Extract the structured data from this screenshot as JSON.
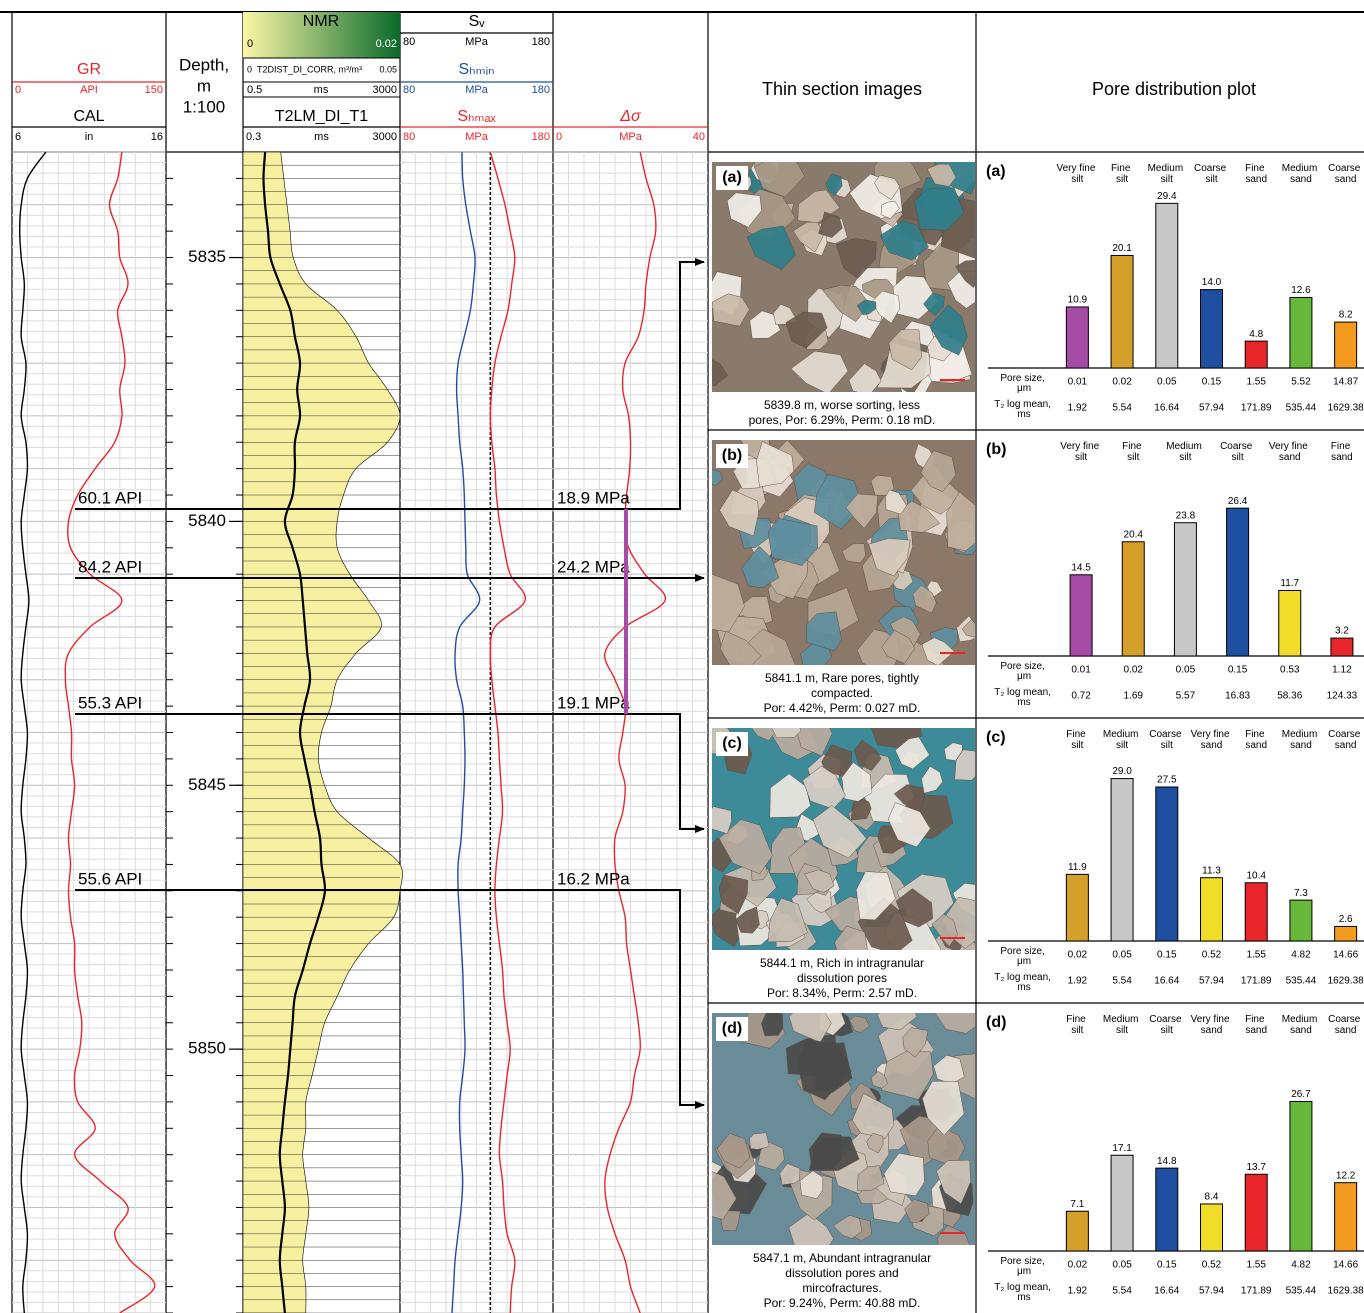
{
  "chart_data": [
    {
      "type": "log",
      "depth_axis": {
        "title": "Depth,",
        "unit": "m",
        "scale": "1:100",
        "lim": [
          5833,
          5855
        ],
        "ticks": [
          5835,
          5840,
          5845,
          5850
        ]
      },
      "depth": [
        5833,
        5833.5,
        5834,
        5834.5,
        5835,
        5835.5,
        5836,
        5836.5,
        5837,
        5837.5,
        5838,
        5838.5,
        5839,
        5839.5,
        5840,
        5840.5,
        5841,
        5841.5,
        5842,
        5842.5,
        5843,
        5843.5,
        5844,
        5844.5,
        5845,
        5845.5,
        5846,
        5846.5,
        5847,
        5847.5,
        5848,
        5848.5,
        5849,
        5849.5,
        5850,
        5850.5,
        5851,
        5851.5,
        5852,
        5852.5,
        5853,
        5853.5,
        5854,
        5854.5,
        5855
      ],
      "tracks": [
        {
          "curves": [
            {
              "name": "GR",
              "unit": "API",
              "lim": [
                0,
                150
              ],
              "color": "#e8262a",
              "values": [
                107,
                103,
                95,
                103,
                105,
                113,
                103,
                107,
                110,
                105,
                107,
                100,
                81,
                64,
                55,
                57,
                76,
                107,
                76,
                55,
                52,
                55,
                58,
                58,
                61,
                58,
                55,
                57,
                55,
                57,
                61,
                61,
                64,
                68,
                66,
                61,
                64,
                81,
                61,
                86,
                113,
                100,
                115,
                139,
                105
              ]
            },
            {
              "name": "CAL",
              "unit": "in",
              "lim": [
                6,
                16
              ],
              "color": "#000000",
              "values": [
                8.2,
                7.0,
                6.6,
                6.5,
                6.6,
                6.8,
                6.7,
                6.6,
                6.9,
                6.8,
                6.6,
                6.9,
                7.0,
                6.8,
                6.6,
                6.7,
                6.9,
                7.1,
                6.9,
                6.7,
                6.6,
                6.8,
                7.0,
                6.9,
                6.7,
                6.6,
                6.8,
                6.9,
                6.7,
                6.6,
                6.8,
                7.0,
                6.9,
                6.7,
                6.6,
                6.8,
                7.0,
                6.9,
                6.7,
                6.6,
                6.8,
                7.0,
                6.9,
                6.7,
                6.8
              ]
            }
          ]
        },
        {
          "title": "NMR",
          "colorbar_lim": [
            0,
            0.02
          ],
          "colorbar_colors": [
            "#fbf7a6",
            "#0a6a2b"
          ],
          "dist_label": "T2DIST_DI_CORR, m³/m³",
          "dist_lim": [
            0,
            0.05
          ],
          "dist_color": "#f7f0a0",
          "dist_values": [
            0.012,
            0.013,
            0.014,
            0.015,
            0.016,
            0.02,
            0.03,
            0.036,
            0.04,
            0.046,
            0.05,
            0.046,
            0.036,
            0.032,
            0.03,
            0.03,
            0.034,
            0.04,
            0.044,
            0.036,
            0.03,
            0.028,
            0.025,
            0.024,
            0.026,
            0.03,
            0.04,
            0.05,
            0.05,
            0.048,
            0.04,
            0.034,
            0.03,
            0.026,
            0.024,
            0.022,
            0.02,
            0.02,
            0.019,
            0.02,
            0.021,
            0.02,
            0.019,
            0.02,
            0.02
          ],
          "t2_unit": "ms",
          "t2_lim": [
            0.5,
            3000
          ],
          "curves": [
            {
              "name": "T2LM_DI_T1",
              "unit": "ms",
              "lim": [
                0.3,
                3000
              ],
              "log": true,
              "color": "#000000",
              "values": [
                1.1,
                1.0,
                1.1,
                1.3,
                1.5,
                2.6,
                4.8,
                6.3,
                8.5,
                7.2,
                8.5,
                6.3,
                6.3,
                5.5,
                3.5,
                5.5,
                8.5,
                10,
                11.4,
                13,
                15.3,
                11,
                8.5,
                11,
                15.3,
                20,
                27.4,
                30,
                36.7,
                25,
                15.3,
                10,
                6.3,
                5.5,
                4.8,
                4.2,
                3.5,
                3,
                2.6,
                3,
                3.5,
                3,
                2.6,
                3,
                3.5
              ]
            }
          ]
        },
        {
          "curves": [
            {
              "name": "Sᵥ",
              "unit": "MPa",
              "lim": [
                80,
                180
              ],
              "color": "#000000",
              "dash": true,
              "values": [
                139,
                139,
                139,
                139,
                139,
                139,
                139,
                139,
                139,
                139,
                139,
                139,
                139,
                139,
                139,
                139,
                139,
                139,
                139,
                139,
                139,
                139,
                139,
                139,
                139,
                139,
                139,
                139,
                139,
                139,
                139,
                139,
                139,
                139,
                139,
                139,
                139,
                139,
                139,
                139,
                139,
                139,
                139,
                139,
                139
              ]
            },
            {
              "name": "Sₕₘᵢₙ",
              "unit": "MPa",
              "lim": [
                80,
                180
              ],
              "color": "#1f4fa0",
              "values": [
                120.5,
                121,
                123,
                126,
                129,
                128,
                126,
                122,
                118,
                117,
                118,
                119,
                121,
                122,
                122.5,
                123,
                124,
                132,
                119,
                116,
                117,
                121,
                122,
                122.5,
                122,
                121,
                120,
                118,
                118,
                119,
                120,
                121,
                121.5,
                122,
                122.5,
                121,
                119,
                119,
                120,
                121,
                120,
                118,
                116,
                115,
                114
              ]
            },
            {
              "name": "Sₕₘₐₓ",
              "unit": "MPa",
              "lim": [
                80,
                180
              ],
              "color": "#e8262a",
              "values": [
                139,
                144,
                148.6,
                152,
                155,
                153,
                150.6,
                146,
                142,
                140,
                139,
                140,
                142,
                143,
                145,
                148,
                152,
                161.7,
                142,
                139,
                140,
                142,
                144,
                145,
                146,
                147,
                145,
                143,
                142,
                143,
                145,
                147,
                148,
                150,
                152,
                150,
                148,
                146,
                145,
                147,
                148,
                150,
                155,
                153,
                152
              ]
            }
          ]
        },
        {
          "curves": [
            {
              "name": "Δσ",
              "unit": "MPa",
              "lim": [
                0,
                40
              ],
              "color": "#e8262a",
              "values": [
                22.5,
                24,
                26,
                26.5,
                25,
                24,
                23.5,
                22,
                18.6,
                18,
                19.5,
                20,
                19.8,
                19,
                18.6,
                19.5,
                23.7,
                28.9,
                18.6,
                13.4,
                16,
                18.6,
                18,
                17,
                18.6,
                18,
                16,
                16,
                17,
                18.6,
                19,
                20,
                21,
                22,
                22.5,
                21,
                20,
                17,
                14.7,
                13.4,
                14,
                16,
                18.6,
                20,
                22.5
              ]
            }
          ]
        }
      ],
      "annotations": [
        {
          "gr": "60.1 API",
          "ds": "18.9 MPa"
        },
        {
          "gr": "84.2 API",
          "ds": "24.2 MPa"
        },
        {
          "gr": "55.3 API",
          "ds": "19.1 MPa"
        },
        {
          "gr": "55.6 API",
          "ds": "16.2 MPa"
        }
      ]
    },
    {
      "type": "bar",
      "label": "(a)",
      "categories": [
        "Very fine silt",
        "Fine silt",
        "Medium silt",
        "Coarse silt",
        "Fine sand",
        "Medium sand",
        "Coarse sand"
      ],
      "values": [
        10.9,
        20.1,
        29.4,
        14.0,
        4.8,
        12.6,
        8.2
      ],
      "value_labels": [
        "10.9",
        "20.1",
        "29.4",
        "14.0",
        "4.8",
        "12.6",
        "8.2"
      ],
      "colors": [
        "#a64ca6",
        "#d4a02a",
        "#c8c8c8",
        "#1f4fa0",
        "#e8262a",
        "#66b73a",
        "#f39a1f"
      ],
      "pore_size_label": "Pore size, μm",
      "pore_sizes": [
        "0.01",
        "0.02",
        "0.05",
        "0.15",
        "1.55",
        "5.52",
        "14.87"
      ],
      "t2_label": "T₂ log mean, ms",
      "t2_log_means": [
        "1.92",
        "5.54",
        "16.64",
        "57.94",
        "171.89",
        "535.44",
        "1629.38"
      ]
    },
    {
      "type": "bar",
      "label": "(b)",
      "categories": [
        "Very fine silt",
        "Fine silt",
        "Medium silt",
        "Coarse silt",
        "Very fine sand",
        "Fine sand"
      ],
      "values": [
        14.5,
        20.4,
        23.8,
        26.4,
        11.7,
        3.2
      ],
      "value_labels": [
        "14.5",
        "20.4",
        "23.8",
        "26.4",
        "11.7",
        "3.2"
      ],
      "colors": [
        "#a64ca6",
        "#d4a02a",
        "#c8c8c8",
        "#1f4fa0",
        "#f2dc2a",
        "#e8262a"
      ],
      "pore_size_label": "Pore size, μm",
      "pore_sizes": [
        "0.01",
        "0.02",
        "0.05",
        "0.15",
        "0.53",
        "1.12"
      ],
      "t2_label": "T₂ log mean, ms",
      "t2_log_means": [
        "0.72",
        "1.69",
        "5.57",
        "16.83",
        "58.36",
        "124.33"
      ]
    },
    {
      "type": "bar",
      "label": "(c)",
      "categories": [
        "Fine silt",
        "Medium silt",
        "Coarse silt",
        "Very fine sand",
        "Fine sand",
        "Medium sand",
        "Coarse sand"
      ],
      "values": [
        11.9,
        29.0,
        27.5,
        11.3,
        10.4,
        7.3,
        2.6
      ],
      "value_labels": [
        "11.9",
        "29.0",
        "27.5",
        "11.3",
        "10.4",
        "7.3",
        "2.6"
      ],
      "colors": [
        "#d4a02a",
        "#c8c8c8",
        "#1f4fa0",
        "#f2dc2a",
        "#e8262a",
        "#66b73a",
        "#f39a1f"
      ],
      "pore_size_label": "Pore size, μm",
      "pore_sizes": [
        "0.02",
        "0.05",
        "0.15",
        "0.52",
        "1.55",
        "4.82",
        "14.66"
      ],
      "t2_label": "T₂ log mean, ms",
      "t2_log_means": [
        "1.92",
        "5.54",
        "16.64",
        "57.94",
        "171.89",
        "535.44",
        "1629.38"
      ]
    },
    {
      "type": "bar",
      "label": "(d)",
      "categories": [
        "Fine silt",
        "Medium silt",
        "Coarse silt",
        "Very fine sand",
        "Fine sand",
        "Medium sand",
        "Coarse sand"
      ],
      "values": [
        7.1,
        17.1,
        14.8,
        8.4,
        13.7,
        26.7,
        12.2
      ],
      "value_labels": [
        "7.1",
        "17.1",
        "14.8",
        "8.4",
        "13.7",
        "26.7",
        "12.2"
      ],
      "colors": [
        "#d4a02a",
        "#c8c8c8",
        "#1f4fa0",
        "#f2dc2a",
        "#e8262a",
        "#66b73a",
        "#f39a1f"
      ],
      "pore_size_label": "Pore size, μm",
      "pore_sizes": [
        "0.02",
        "0.05",
        "0.15",
        "0.52",
        "1.55",
        "4.82",
        "14.66"
      ],
      "t2_label": "T₂ log mean, ms",
      "t2_log_means": [
        "1.92",
        "5.54",
        "16.64",
        "57.94",
        "171.89",
        "535.44",
        "1629.38"
      ]
    }
  ],
  "thin_sections": {
    "title": "Thin section images",
    "items": [
      {
        "label": "(a)",
        "caption": [
          "5839.8 m, worse sorting, less",
          "pores, Por: 6.29%, Perm: 0.18 mD."
        ]
      },
      {
        "label": "(b)",
        "caption": [
          "5841.1 m, Rare pores, tightly",
          "compacted.",
          "Por: 4.42%, Perm: 0.027 mD."
        ]
      },
      {
        "label": "(c)",
        "caption": [
          "5844.1 m, Rich in intragranular",
          "dissolution pores",
          "Por: 8.34%, Perm: 2.57 mD."
        ]
      },
      {
        "label": "(d)",
        "caption": [
          "5847.1 m, Abundant intragranular",
          "dissolution pores and",
          "mircofractures.",
          "Por: 9.24%, Perm: 40.88 mD."
        ]
      }
    ]
  },
  "pore_plot_title": "Pore distribution plot"
}
